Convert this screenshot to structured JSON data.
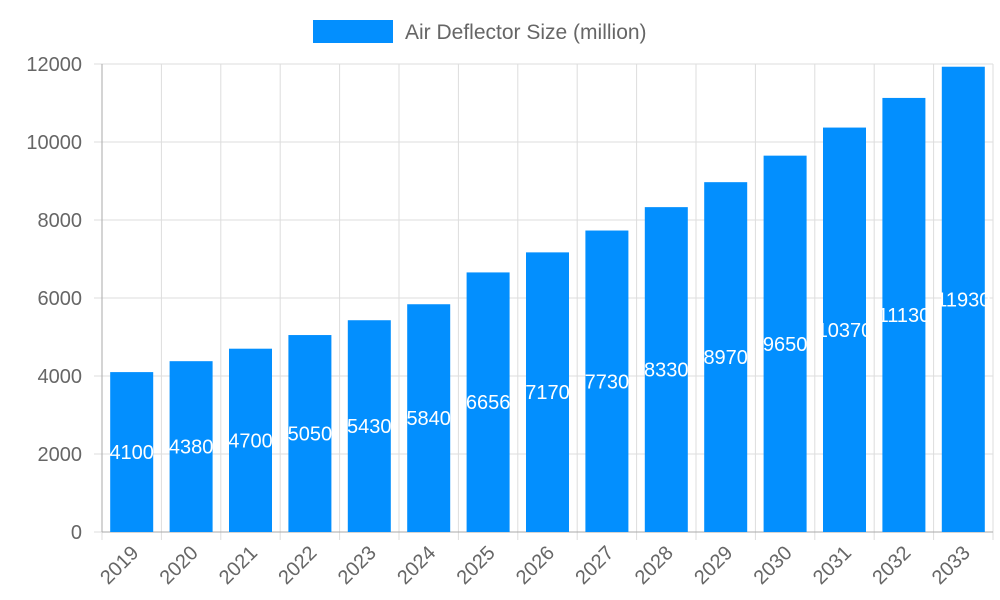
{
  "chart_data": {
    "type": "bar",
    "categories": [
      "2019",
      "2020",
      "2021",
      "2022",
      "2023",
      "2024",
      "2025",
      "2026",
      "2027",
      "2028",
      "2029",
      "2030",
      "2031",
      "2032",
      "2033"
    ],
    "series": [
      {
        "name": "Air Deflector Size (million)",
        "values": [
          4100,
          4380,
          4700,
          5050,
          5430,
          5840,
          6656,
          7170,
          7730,
          8330,
          8970,
          9650,
          10370,
          11130,
          11930
        ]
      }
    ],
    "ylim": [
      0,
      12000
    ],
    "yticks": [
      0,
      2000,
      4000,
      6000,
      8000,
      10000,
      12000
    ],
    "grid": true,
    "legend": "top",
    "data_labels": true,
    "colors": {
      "bar": "#038ffe",
      "label": "#ffffff",
      "tick": "#666666",
      "grid": "#dddddd"
    }
  }
}
